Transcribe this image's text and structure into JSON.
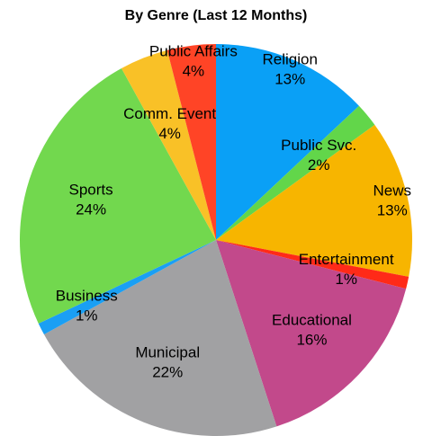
{
  "chart_data": {
    "type": "pie",
    "title": "By Genre (Last 12 Months)",
    "categories": [
      "Religion",
      "Public Svc.",
      "News",
      "Entertainment",
      "Educational",
      "Municipal",
      "Business",
      "Sports",
      "Comm. Event",
      "Public Affairs"
    ],
    "values": [
      13,
      2,
      13,
      1,
      16,
      22,
      1,
      24,
      4,
      4
    ],
    "value_labels": [
      "13%",
      "2%",
      "13%",
      "1%",
      "16%",
      "22%",
      "1%",
      "24%",
      "4%",
      "4%"
    ],
    "colors": [
      "#0aa0f6",
      "#62d64a",
      "#f7b500",
      "#ff2a18",
      "#c2498b",
      "#a1a1a3",
      "#1a9ff4",
      "#72d84e",
      "#f9c127",
      "#ff4426"
    ]
  }
}
